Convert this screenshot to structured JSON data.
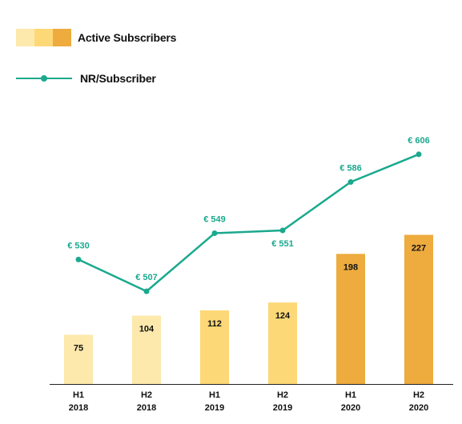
{
  "legend": {
    "bars_label": "Active Subscribers",
    "line_label": "NR/Subscriber",
    "swatch_colors": [
      "#fde9ac",
      "#fdd877",
      "#eeab3e"
    ]
  },
  "colors": {
    "line": "#1aa98e",
    "axis": "#222222",
    "text": "#111111"
  },
  "chart_data": {
    "type": "bar",
    "categories": [
      [
        "H1",
        "2018"
      ],
      [
        "H2",
        "2018"
      ],
      [
        "H1",
        "2019"
      ],
      [
        "H2",
        "2019"
      ],
      [
        "H1",
        "2020"
      ],
      [
        "H2",
        "2020"
      ]
    ],
    "series": [
      {
        "name": "Active Subscribers",
        "type": "bar",
        "values": [
          75,
          104,
          112,
          124,
          198,
          227
        ],
        "labels": [
          "75",
          "104",
          "112",
          "124",
          "198",
          "227"
        ],
        "colors": [
          "#fde9ac",
          "#fde9ac",
          "#fdd877",
          "#fdd877",
          "#eeab3e",
          "#eeab3e"
        ],
        "ylim": [
          0,
          560
        ]
      },
      {
        "name": "NR/Subscriber",
        "type": "line",
        "values": [
          530,
          507,
          549,
          551,
          586,
          606
        ],
        "labels": [
          "€ 530",
          "€ 507",
          "€ 549",
          "€ 551",
          "€ 586",
          "€ 606"
        ],
        "label_positions": [
          "above",
          "above",
          "above",
          "below",
          "above",
          "above"
        ],
        "ylim": [
          440,
          706
        ]
      }
    ]
  }
}
